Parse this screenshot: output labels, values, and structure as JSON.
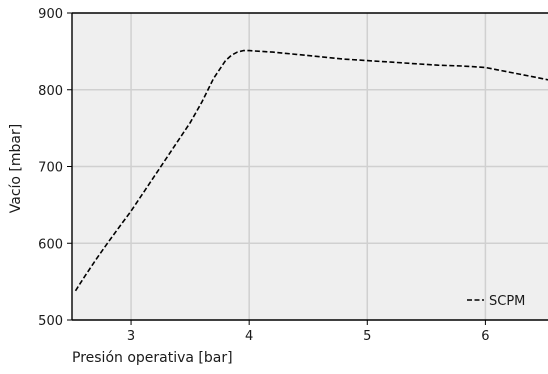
{
  "chart_data": {
    "type": "line",
    "xlabel": "Presión operativa [bar]",
    "ylabel": "Vacío [mbar]",
    "xlim": [
      2.5,
      6.53
    ],
    "ylim": [
      500,
      900
    ],
    "xticks": [
      3,
      4,
      5,
      6
    ],
    "yticks": [
      500,
      600,
      700,
      800,
      900
    ],
    "grid": true,
    "legend_position": "bottom-right",
    "colors": {
      "plot_background": "#efefef",
      "grid": "#d0d0d0",
      "line": "#000000"
    },
    "series": [
      {
        "name": "SCPM",
        "style": "dashed",
        "x": [
          2.53,
          2.6,
          2.7,
          2.8,
          2.9,
          3.0,
          3.1,
          3.2,
          3.3,
          3.4,
          3.5,
          3.6,
          3.7,
          3.8,
          3.85,
          3.9,
          3.95,
          4.0,
          4.1,
          4.2,
          4.4,
          4.6,
          4.8,
          5.0,
          5.2,
          5.4,
          5.6,
          5.8,
          5.9,
          6.0,
          6.1,
          6.2,
          6.3,
          6.4,
          6.53
        ],
        "y": [
          538,
          555,
          578,
          600,
          621,
          642,
          665,
          688,
          711,
          734,
          757,
          784,
          815,
          838,
          845,
          849,
          851,
          851,
          850,
          849,
          846,
          843,
          840,
          838,
          836,
          834,
          832,
          831,
          830,
          829,
          826,
          823,
          820,
          817,
          813
        ]
      }
    ]
  }
}
